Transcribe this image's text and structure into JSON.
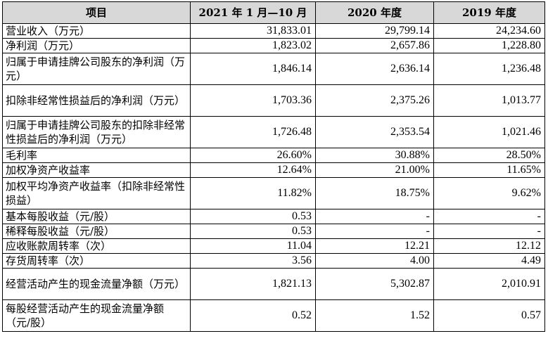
{
  "table": {
    "headers": [
      "项目",
      "2021 年 1 月—10 月",
      "2020 年度",
      "2019 年度"
    ],
    "rows": [
      {
        "item": "营业收入（万元）",
        "v2021": "31,833.01",
        "v2020": "29,799.14",
        "v2019": "24,234.60"
      },
      {
        "item": "净利润（万元）",
        "v2021": "1,823.02",
        "v2020": "2,657.86",
        "v2019": "1,228.80"
      },
      {
        "item": "归属于申请挂牌公司股东的净利润（万元）",
        "v2021": "1,846.14",
        "v2020": "2,636.14",
        "v2019": "1,236.48"
      },
      {
        "item": "扣除非经常性损益后的净利润（万元）",
        "v2021": "1,703.36",
        "v2020": "2,375.26",
        "v2019": "1,013.77"
      },
      {
        "item": "归属于申请挂牌公司股东的扣除非经常性损益后的净利润（万元）",
        "v2021": "1,726.48",
        "v2020": "2,353.54",
        "v2019": "1,021.46"
      },
      {
        "item": "毛利率",
        "v2021": "26.60%",
        "v2020": "30.88%",
        "v2019": "28.50%"
      },
      {
        "item": "加权净资产收益率",
        "v2021": "12.64%",
        "v2020": "21.00%",
        "v2019": "11.65%"
      },
      {
        "item": "加权平均净资产收益率（扣除非经常性损益）",
        "v2021": "11.82%",
        "v2020": "18.75%",
        "v2019": "9.62%"
      },
      {
        "item": "基本每股收益（元/股）",
        "v2021": "0.53",
        "v2020": "-",
        "v2019": "-"
      },
      {
        "item": "稀释每股收益（元/股）",
        "v2021": "0.53",
        "v2020": "-",
        "v2019": "-"
      },
      {
        "item": "应收账款周转率（次）",
        "v2021": "11.04",
        "v2020": "12.21",
        "v2019": "12.12"
      },
      {
        "item": "存货周转率（次）",
        "v2021": "3.56",
        "v2020": "4.00",
        "v2019": "4.49"
      },
      {
        "item": "经营活动产生的现金流量净额（万元）",
        "v2021": "1,821.13",
        "v2020": "5,302.87",
        "v2019": "2,010.91"
      },
      {
        "item": "每股经营活动产生的现金流量净额（元/股）",
        "v2021": "0.52",
        "v2020": "1.52",
        "v2019": "0.57"
      }
    ]
  }
}
